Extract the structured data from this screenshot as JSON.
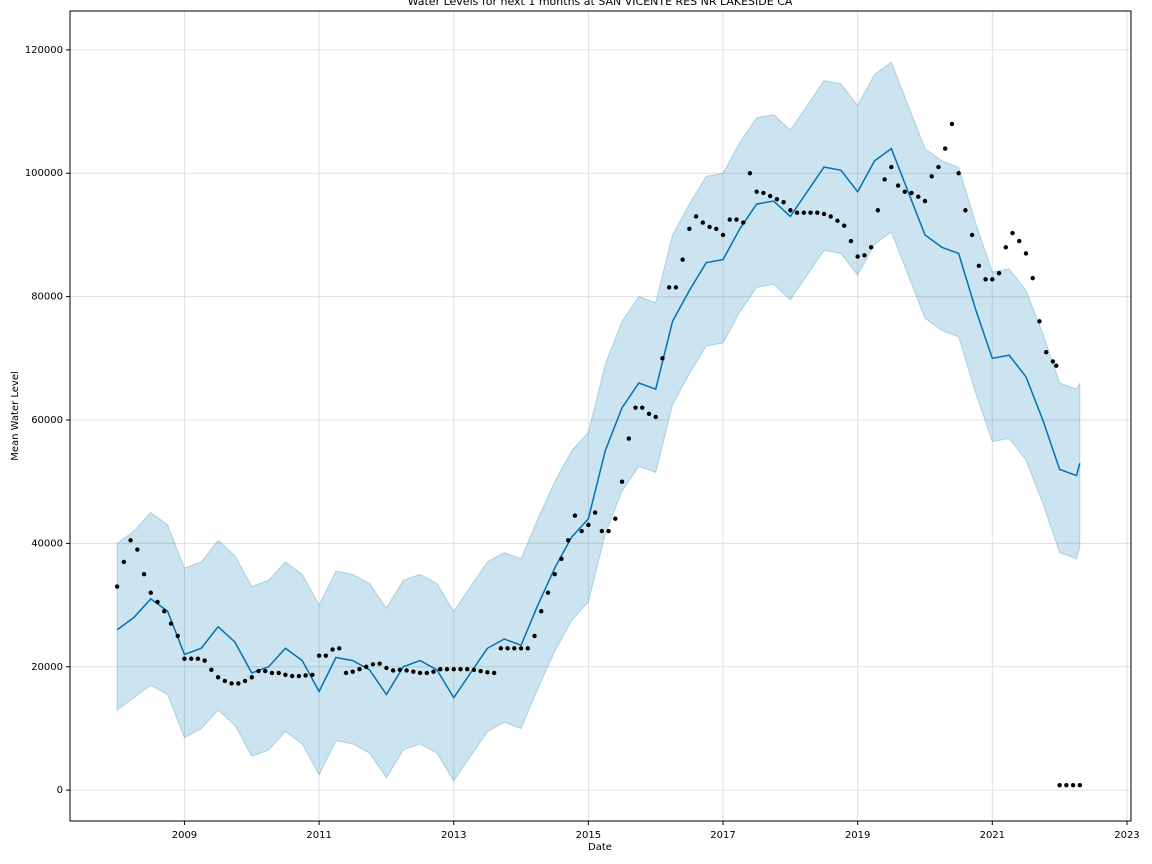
{
  "chart_data": {
    "type": "line",
    "title": "Water Levels for next 1 months at SAN VICENTE RES NR LAKESIDE CA",
    "xlabel": "Date",
    "ylabel": "Mean Water Level",
    "xlim": [
      2007.3,
      2023.06
    ],
    "ylim": [
      -5000,
      126300
    ],
    "xticks": [
      2009,
      2011,
      2013,
      2015,
      2017,
      2019,
      2021,
      2023
    ],
    "yticks": [
      0,
      20000,
      40000,
      60000,
      80000,
      100000,
      120000
    ],
    "grid": true,
    "x": [
      2008.0,
      2008.25,
      2008.5,
      2008.75,
      2009.0,
      2009.25,
      2009.5,
      2009.75,
      2010.0,
      2010.25,
      2010.5,
      2010.75,
      2011.0,
      2011.25,
      2011.5,
      2011.75,
      2012.0,
      2012.25,
      2012.5,
      2012.75,
      2013.0,
      2013.25,
      2013.5,
      2013.75,
      2014.0,
      2014.25,
      2014.5,
      2014.75,
      2015.0,
      2015.25,
      2015.5,
      2015.75,
      2016.0,
      2016.25,
      2016.5,
      2016.75,
      2017.0,
      2017.25,
      2017.5,
      2017.75,
      2018.0,
      2018.25,
      2018.5,
      2018.75,
      2019.0,
      2019.25,
      2019.5,
      2019.75,
      2020.0,
      2020.25,
      2020.5,
      2020.75,
      2021.0,
      2021.25,
      2021.5,
      2021.75,
      2022.0,
      2022.25,
      2022.3
    ],
    "series": [
      {
        "color": "#0072B2",
        "values": [
          26000,
          28000,
          31000,
          29000,
          22000,
          23000,
          26500,
          24000,
          19000,
          20000,
          23000,
          21000,
          16000,
          21500,
          21000,
          19500,
          15500,
          20000,
          21000,
          19500,
          15000,
          19000,
          23000,
          24500,
          23500,
          30000,
          36000,
          41000,
          44000,
          55000,
          62000,
          66000,
          65000,
          76000,
          81000,
          85500,
          86000,
          91000,
          95000,
          95500,
          93000,
          97000,
          101000,
          100500,
          97000,
          102000,
          104000,
          97000,
          90000,
          88000,
          87000,
          78000,
          70000,
          70500,
          67000,
          60000,
          52000,
          51000,
          53000
        ]
      }
    ],
    "band": {
      "color": "#0072B2",
      "lower": [
        13000,
        15000,
        17000,
        15500,
        8500,
        10000,
        13000,
        10500,
        5500,
        6500,
        9500,
        7500,
        2500,
        8000,
        7500,
        6000,
        2000,
        6500,
        7500,
        6000,
        1500,
        5500,
        9500,
        11000,
        10000,
        16500,
        22500,
        27500,
        30500,
        41500,
        48500,
        52500,
        51500,
        62500,
        67500,
        72000,
        72500,
        77500,
        81500,
        82000,
        79500,
        83500,
        87500,
        87000,
        83500,
        88500,
        90500,
        83500,
        76500,
        74500,
        73500,
        64500,
        56500,
        57000,
        53500,
        46500,
        38500,
        37500,
        39500
      ],
      "upper": [
        40000,
        42000,
        45000,
        43000,
        36000,
        37000,
        40500,
        38000,
        33000,
        34000,
        37000,
        35000,
        30000,
        35500,
        35000,
        33500,
        29500,
        34000,
        35000,
        33500,
        29000,
        33000,
        37000,
        38500,
        37500,
        44000,
        50000,
        55000,
        58000,
        69000,
        76000,
        80000,
        79000,
        90000,
        95000,
        99500,
        100000,
        105000,
        109000,
        109500,
        107000,
        111000,
        115000,
        114500,
        111000,
        116000,
        118000,
        111000,
        104000,
        102000,
        101000,
        92000,
        84000,
        84500,
        81000,
        74000,
        66000,
        65000,
        66000
      ]
    },
    "points": {
      "color": "#000000",
      "x": [
        2008.0,
        2008.1,
        2008.2,
        2008.3,
        2008.4,
        2008.5,
        2008.6,
        2008.7,
        2008.8,
        2008.9,
        2009.0,
        2009.1,
        2009.2,
        2009.3,
        2009.4,
        2009.5,
        2009.6,
        2009.7,
        2009.8,
        2009.9,
        2010.0,
        2010.1,
        2010.2,
        2010.3,
        2010.4,
        2010.5,
        2010.6,
        2010.7,
        2010.8,
        2010.9,
        2011.0,
        2011.1,
        2011.2,
        2011.3,
        2011.4,
        2011.5,
        2011.6,
        2011.7,
        2011.8,
        2011.9,
        2012.0,
        2012.1,
        2012.2,
        2012.3,
        2012.4,
        2012.5,
        2012.6,
        2012.7,
        2012.8,
        2012.9,
        2013.0,
        2013.1,
        2013.2,
        2013.3,
        2013.4,
        2013.5,
        2013.6,
        2013.7,
        2013.8,
        2013.9,
        2014.0,
        2014.1,
        2014.2,
        2014.3,
        2014.4,
        2014.5,
        2014.6,
        2014.7,
        2014.8,
        2014.9,
        2015.0,
        2015.1,
        2015.2,
        2015.3,
        2015.4,
        2015.5,
        2015.6,
        2015.7,
        2015.8,
        2015.9,
        2016.0,
        2016.1,
        2016.2,
        2016.3,
        2016.4,
        2016.5,
        2016.6,
        2016.7,
        2016.8,
        2016.9,
        2017.0,
        2017.1,
        2017.2,
        2017.3,
        2017.4,
        2017.5,
        2017.6,
        2017.7,
        2017.8,
        2017.9,
        2018.0,
        2018.1,
        2018.2,
        2018.3,
        2018.4,
        2018.5,
        2018.6,
        2018.7,
        2018.8,
        2018.9,
        2019.0,
        2019.1,
        2019.2,
        2019.3,
        2019.4,
        2019.5,
        2019.6,
        2019.7,
        2019.8,
        2019.9,
        2020.0,
        2020.1,
        2020.2,
        2020.3,
        2020.4,
        2020.5,
        2020.6,
        2020.7,
        2020.8,
        2020.9,
        2021.0,
        2021.1,
        2021.2,
        2021.3,
        2021.4,
        2021.5,
        2021.6,
        2021.7,
        2021.8,
        2021.9,
        2021.95,
        2022.0,
        2022.1,
        2022.2,
        2022.3
      ],
      "values": [
        33000,
        37000,
        40500,
        39000,
        35000,
        32000,
        30500,
        29000,
        27000,
        25000,
        21300,
        21300,
        21300,
        21000,
        19500,
        18300,
        17700,
        17300,
        17300,
        17700,
        18300,
        19300,
        19300,
        19000,
        19000,
        18700,
        18500,
        18500,
        18600,
        18700,
        21800,
        21800,
        22800,
        23000,
        19000,
        19200,
        19600,
        20000,
        20400,
        20500,
        19800,
        19400,
        19500,
        19400,
        19200,
        19000,
        19000,
        19200,
        19600,
        19600,
        19600,
        19600,
        19600,
        19500,
        19300,
        19100,
        19000,
        23000,
        23000,
        23000,
        23000,
        23000,
        25000,
        29000,
        32000,
        35000,
        37500,
        40500,
        44500,
        42000,
        43000,
        45000,
        42000,
        42000,
        44000,
        50000,
        57000,
        62000,
        62000,
        61000,
        60500,
        70000,
        81500,
        81500,
        86000,
        91000,
        93000,
        92000,
        91300,
        91000,
        90000,
        92500,
        92500,
        92000,
        100000,
        97000,
        96800,
        96300,
        95800,
        95300,
        94000,
        93600,
        93600,
        93600,
        93600,
        93400,
        93000,
        92300,
        91500,
        89000,
        86500,
        86700,
        88000,
        94000,
        99000,
        101000,
        98000,
        97000,
        96800,
        96200,
        95500,
        99500,
        101000,
        104000,
        108000,
        100000,
        94000,
        90000,
        85000,
        82800,
        82800,
        83800,
        88000,
        90300,
        89000,
        87000,
        83000,
        76000,
        71000,
        69500,
        68800,
        800,
        800,
        800,
        800
      ]
    }
  }
}
